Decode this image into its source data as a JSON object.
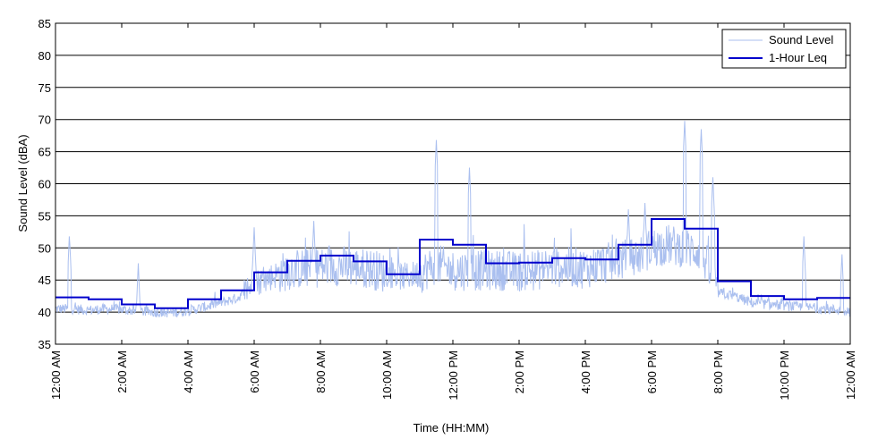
{
  "chart_data": {
    "type": "line",
    "xlabel": "Time (HH:MM)",
    "ylabel": "Sound Level (dBA)",
    "x_range_hours": [
      0,
      24
    ],
    "ylim": [
      35,
      85
    ],
    "y_ticks": [
      35,
      40,
      45,
      50,
      55,
      60,
      65,
      70,
      75,
      80,
      85
    ],
    "x_tick_hours": [
      0,
      2,
      4,
      6,
      8,
      10,
      12,
      14,
      16,
      18,
      20,
      22,
      24
    ],
    "x_tick_labels": [
      "12:00 AM",
      "2:00 AM",
      "4:00 AM",
      "6:00 AM",
      "8:00 AM",
      "10:00 AM",
      "12:00 PM",
      "2:00 PM",
      "4:00 PM",
      "6:00 PM",
      "8:00 PM",
      "10:00 PM",
      "12:00 AM"
    ],
    "grid": "horizontal",
    "legend_position": "top-right",
    "series": [
      {
        "name": "Sound Level",
        "color": "#aabfef",
        "style": "noisy-trace",
        "x_hours": [
          0,
          0.5,
          1,
          1.5,
          2,
          2.5,
          3,
          3.5,
          4,
          4.5,
          5,
          5.5,
          6,
          6.5,
          7,
          7.5,
          8,
          8.5,
          9,
          9.5,
          10,
          10.5,
          11,
          11.5,
          12,
          12.5,
          13,
          13.5,
          14,
          14.5,
          15,
          15.5,
          16,
          16.5,
          17,
          17.5,
          18,
          18.5,
          19,
          19.5,
          20,
          20.5,
          21,
          21.5,
          22,
          22.5,
          23,
          23.5,
          24
        ],
        "values": [
          40.5,
          40.5,
          40.3,
          40.5,
          40.4,
          40.1,
          40,
          39.9,
          40.2,
          40.8,
          41.5,
          42.2,
          44.5,
          45.5,
          46.5,
          46.8,
          47,
          47.2,
          47,
          46.8,
          46,
          45.5,
          46,
          47.5,
          46.5,
          46.5,
          46.5,
          46.5,
          46.3,
          46.5,
          47,
          47,
          46.8,
          47.5,
          48,
          48.5,
          50,
          50.5,
          50,
          49.5,
          43,
          42.5,
          41.5,
          41.2,
          41,
          40.8,
          40.6,
          40.4,
          40.2
        ],
        "peaks": [
          {
            "x_hours": 0.42,
            "value": 52.2
          },
          {
            "x_hours": 2.5,
            "value": 47.6
          },
          {
            "x_hours": 6,
            "value": 53.2
          },
          {
            "x_hours": 7.8,
            "value": 54.2
          },
          {
            "x_hours": 11.5,
            "value": 66.8
          },
          {
            "x_hours": 12.5,
            "value": 62.5
          },
          {
            "x_hours": 17.3,
            "value": 56
          },
          {
            "x_hours": 17.8,
            "value": 57
          },
          {
            "x_hours": 19,
            "value": 69.8
          },
          {
            "x_hours": 19.5,
            "value": 68.5
          },
          {
            "x_hours": 19.85,
            "value": 61
          },
          {
            "x_hours": 22.6,
            "value": 51.8
          },
          {
            "x_hours": 23.75,
            "value": 49
          }
        ]
      },
      {
        "name": "1-Hour Leq",
        "color": "#0000cc",
        "style": "step",
        "step_start_hours": [
          0,
          1,
          2,
          3,
          4,
          5,
          6,
          7,
          8,
          9,
          10,
          11,
          12,
          13,
          14,
          15,
          16,
          17,
          18,
          19,
          20,
          21,
          22,
          23
        ],
        "values": [
          42.3,
          42,
          41.2,
          40.6,
          42,
          43.4,
          46.2,
          48,
          48.8,
          47.9,
          45.9,
          51.3,
          50.5,
          47.6,
          47.7,
          48.4,
          48.2,
          50.5,
          54.5,
          53,
          44.8,
          42.5,
          42,
          42.2
        ]
      }
    ]
  }
}
